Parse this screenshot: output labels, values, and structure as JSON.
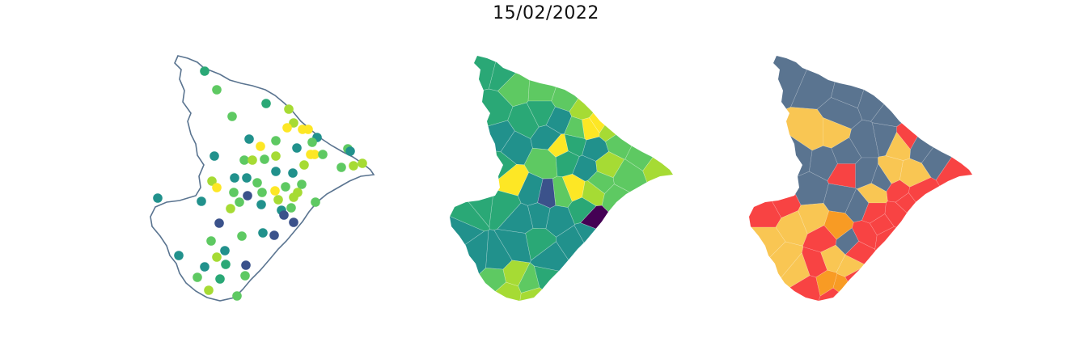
{
  "figure": {
    "title": "15/02/2022"
  },
  "colors": {
    "outline": "#5a7490",
    "viridis": [
      "#440154",
      "#3b528b",
      "#21918c",
      "#2aa876",
      "#5ec962",
      "#a6db34",
      "#fde725"
    ],
    "risk": {
      "low": "#5a7490",
      "medium": "#f9c653",
      "high": "#f84343",
      "orange": "#f89b24"
    }
  },
  "panels": [
    {
      "name": "station-points-map",
      "kind": "points"
    },
    {
      "name": "interpolated-choropleth-map",
      "kind": "viridis-choropleth"
    },
    {
      "name": "risk-category-map",
      "kind": "categorical-choropleth"
    }
  ]
}
